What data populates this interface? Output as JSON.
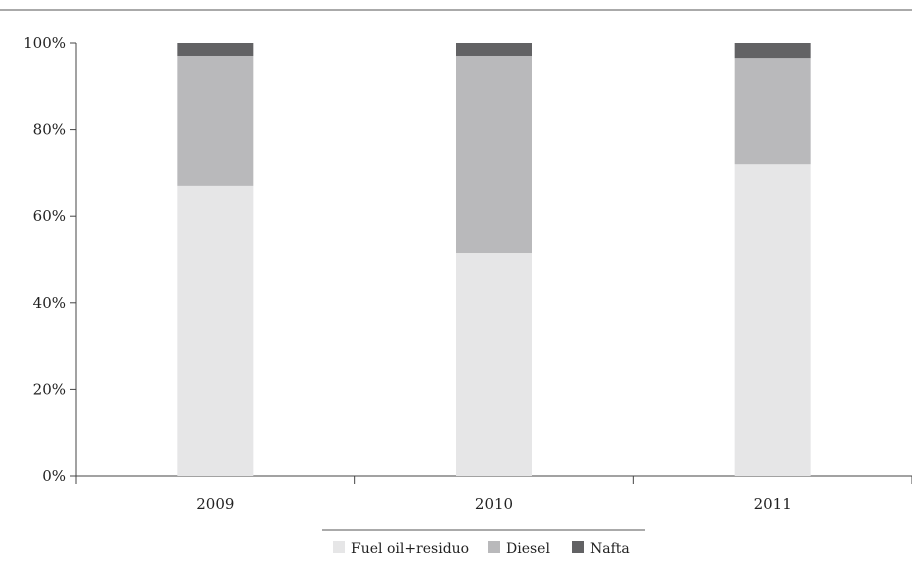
{
  "chart_data": {
    "type": "bar",
    "stacked": true,
    "categories": [
      "2009",
      "2010",
      "2011"
    ],
    "series": [
      {
        "name": "Fuel oil+residuo",
        "values": [
          67,
          51.5,
          72
        ],
        "color": "#e6e6e7"
      },
      {
        "name": "Diesel",
        "values": [
          30,
          45.5,
          24.5
        ],
        "color": "#b9b9bb"
      },
      {
        "name": "Nafta",
        "values": [
          3,
          3,
          3.5
        ],
        "color": "#626264"
      }
    ],
    "ylim": [
      0,
      100
    ],
    "yticks": [
      0,
      20,
      40,
      60,
      80,
      100
    ],
    "ytick_labels": [
      "0%",
      "20%",
      "40%",
      "60%",
      "80%",
      "100%"
    ],
    "grid": false,
    "legend_position": "bottom"
  }
}
